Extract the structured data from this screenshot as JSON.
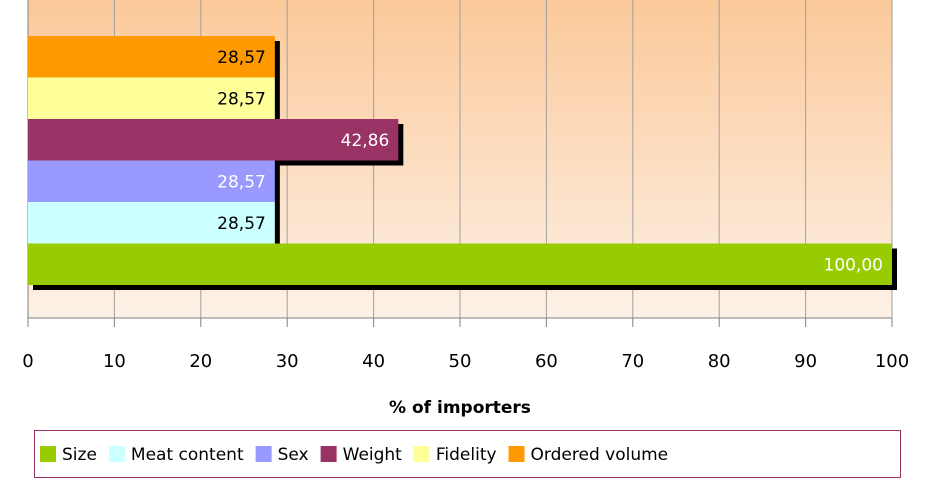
{
  "chart_data": {
    "type": "hbar",
    "x_label": "% of importers",
    "xlim": [
      0,
      100
    ],
    "xticks": [
      0,
      10,
      20,
      30,
      40,
      50,
      60,
      70,
      80,
      90,
      100
    ],
    "grid": true,
    "legend": "bottom",
    "series": [
      {
        "name": "Size",
        "color": "#99cc00",
        "label_color": "#ffffff",
        "values": [
          100.0
        ],
        "value_labels": [
          "100,00"
        ]
      },
      {
        "name": "Meat content",
        "color": "#ccffff",
        "label_color": "#000000",
        "values": [
          28.57
        ],
        "value_labels": [
          "28,57"
        ]
      },
      {
        "name": "Sex",
        "color": "#9999ff",
        "label_color": "#ffffff",
        "values": [
          28.57
        ],
        "value_labels": [
          "28,57"
        ]
      },
      {
        "name": "Weight",
        "color": "#993366",
        "label_color": "#ffffff",
        "values": [
          42.86
        ],
        "value_labels": [
          "42,86"
        ]
      },
      {
        "name": "Fidelity",
        "color": "#ffff99",
        "label_color": "#000000",
        "values": [
          28.57
        ],
        "value_labels": [
          "28,57"
        ]
      },
      {
        "name": "Ordered volume",
        "color": "#ff9900",
        "label_color": "#000000",
        "values": [
          28.57
        ],
        "value_labels": [
          "28,57"
        ]
      }
    ]
  }
}
